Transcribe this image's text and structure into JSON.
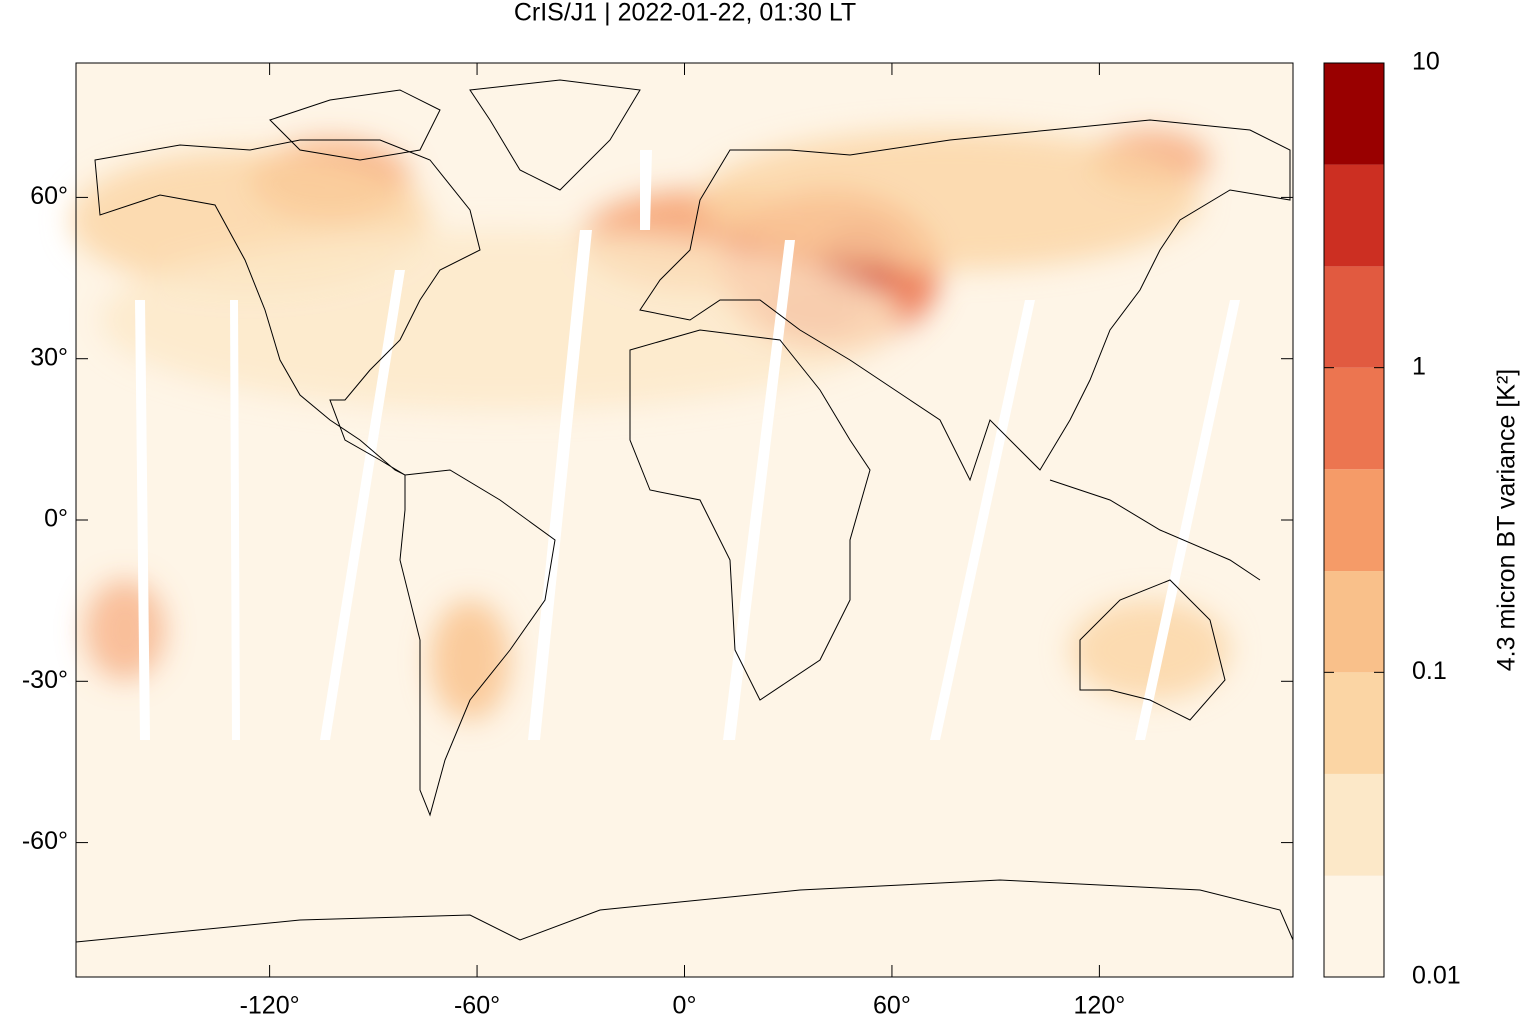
{
  "chart_data": {
    "type": "map",
    "title": "CrIS/J1 | 2022-01-22, 01:30 LT",
    "xlim": [
      -176,
      176
    ],
    "ylim": [
      -85,
      85
    ],
    "xticks": [
      {
        "value": -120,
        "label": "-120°"
      },
      {
        "value": -60,
        "label": "-60°"
      },
      {
        "value": 0,
        "label": "0°"
      },
      {
        "value": 60,
        "label": "60°"
      },
      {
        "value": 120,
        "label": "120°"
      }
    ],
    "yticks": [
      {
        "value": -60,
        "label": "-60°"
      },
      {
        "value": -30,
        "label": "-30°"
      },
      {
        "value": 0,
        "label": "0°"
      },
      {
        "value": 30,
        "label": "30°"
      },
      {
        "value": 60,
        "label": "60°"
      }
    ],
    "colorbar": {
      "label": "4.3 micron BT variance [K²]",
      "log_scale": true,
      "lim": [
        0.01,
        10
      ],
      "ticks": [
        0.01,
        0.1,
        1,
        10
      ],
      "levels": [
        0.01,
        0.0215,
        0.0464,
        0.1,
        0.215,
        0.464,
        1,
        2.15,
        4.64,
        10
      ],
      "colors": [
        "#fef5e7",
        "#fce8c8",
        "#fbd5a4",
        "#f9c08a",
        "#f59b68",
        "#ec7550",
        "#e15a40",
        "#cc2f22",
        "#990000"
      ]
    }
  }
}
